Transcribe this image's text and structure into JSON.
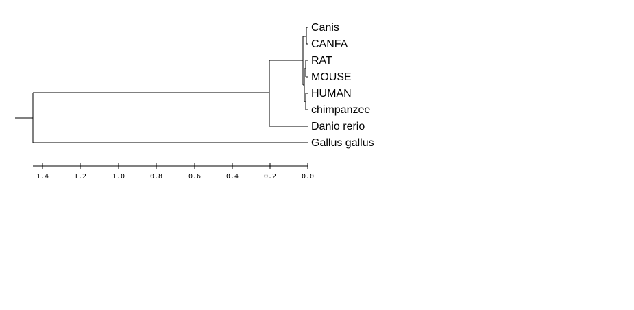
{
  "leaves": [
    {
      "id": "canis",
      "label": "Canis"
    },
    {
      "id": "canfa",
      "label": "CANFA"
    },
    {
      "id": "rat",
      "label": "RAT"
    },
    {
      "id": "mouse",
      "label": "MOUSE"
    },
    {
      "id": "human",
      "label": "HUMAN"
    },
    {
      "id": "chimpanzee",
      "label": "chimpanzee"
    },
    {
      "id": "danio",
      "label": "Danio rerio"
    },
    {
      "id": "gallus",
      "label": "Gallus gallus"
    }
  ],
  "scale": {
    "ticks": [
      "1.4",
      "1.2",
      "1.0",
      "0.8",
      "0.6",
      "0.4",
      "0.2",
      "0.0"
    ]
  }
}
